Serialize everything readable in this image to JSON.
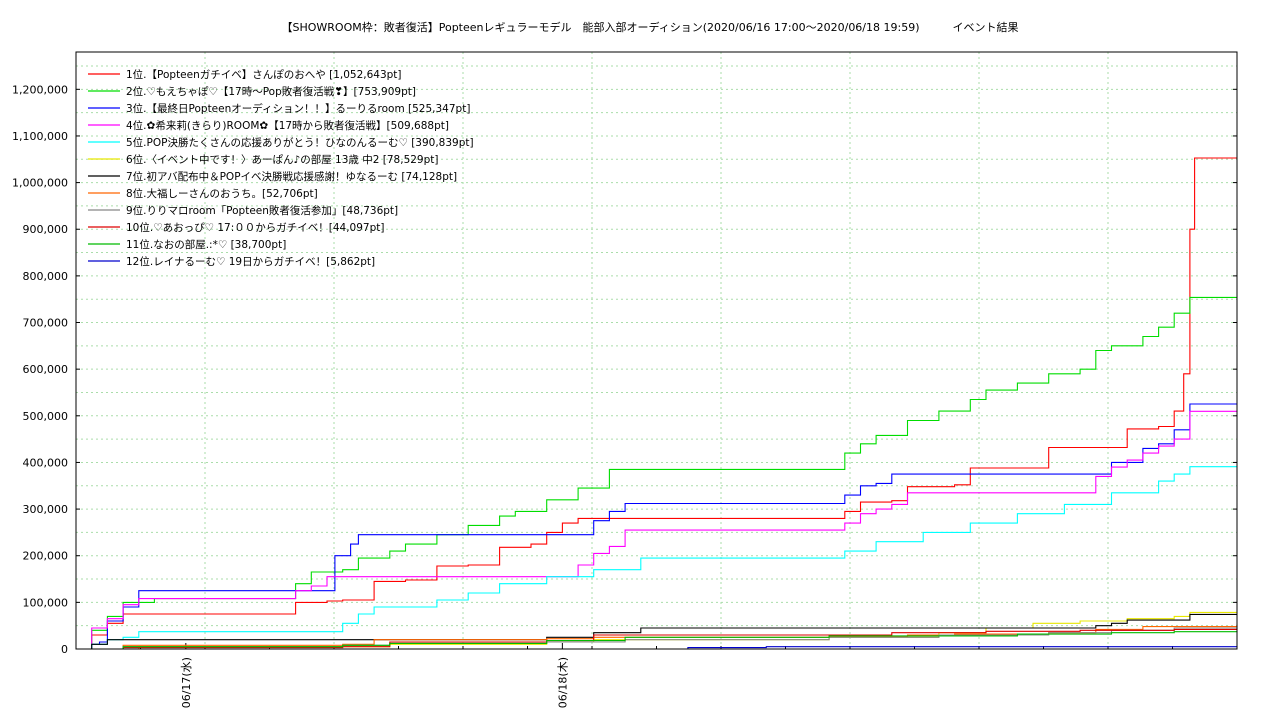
{
  "chart_data": {
    "type": "line",
    "title": "【SHOWROOM枠：敗者復活】Popteenレギュラーモデル　能部入部オーディション(2020/06/16 17:00～2020/06/18 19:59)　　　イベント結果",
    "xlabel": "",
    "ylabel": "",
    "xlim": [
      "2020-06-16 17:00",
      "2020-06-18 19:59"
    ],
    "ylim": [
      0,
      1280000
    ],
    "yticks": [
      "0",
      "100,000",
      "200,000",
      "300,000",
      "400,000",
      "500,000",
      "600,000",
      "700,000",
      "800,000",
      "900,000",
      "1,000,000",
      "1,100,000",
      "1,200,000"
    ],
    "xticks": [
      {
        "label": "06/17(水)",
        "t": 7
      },
      {
        "label": "06/18(木)",
        "t": 31
      }
    ],
    "grid": true,
    "legend_position": "top-left",
    "series": [
      {
        "name": "1位.【Popteenガチイベ】さんぽのおへや [1,052,643pt]",
        "color": "#ff0000",
        "points": [
          [
            0,
            0
          ],
          [
            1,
            30000
          ],
          [
            2,
            55000
          ],
          [
            3,
            75000
          ],
          [
            13,
            75000
          ],
          [
            14,
            100000
          ],
          [
            16,
            103000
          ],
          [
            17,
            105000
          ],
          [
            19,
            145000
          ],
          [
            21,
            148000
          ],
          [
            23,
            178000
          ],
          [
            25,
            180000
          ],
          [
            27,
            218000
          ],
          [
            29,
            225000
          ],
          [
            30,
            250000
          ],
          [
            31,
            270000
          ],
          [
            32,
            280000
          ],
          [
            48,
            280000
          ],
          [
            49,
            295000
          ],
          [
            50,
            315000
          ],
          [
            52,
            318000
          ],
          [
            53,
            348000
          ],
          [
            56,
            352000
          ],
          [
            57,
            388000
          ],
          [
            61,
            388000
          ],
          [
            62,
            432000
          ],
          [
            66,
            432000
          ],
          [
            67,
            472000
          ],
          [
            69,
            477000
          ],
          [
            70,
            510000
          ],
          [
            70.6,
            590000
          ],
          [
            71,
            900000
          ],
          [
            71.3,
            1052643
          ],
          [
            74,
            1052643
          ]
        ]
      },
      {
        "name": "2位.♡もえちゃぽ♡【17時〜Pop敗者復活戦❣】[753,909pt]",
        "color": "#00dd00",
        "points": [
          [
            0,
            0
          ],
          [
            1,
            40000
          ],
          [
            2,
            70000
          ],
          [
            3,
            100000
          ],
          [
            5,
            108000
          ],
          [
            13,
            108000
          ],
          [
            14,
            140000
          ],
          [
            15,
            165000
          ],
          [
            17,
            170000
          ],
          [
            18,
            195000
          ],
          [
            20,
            210000
          ],
          [
            21,
            225000
          ],
          [
            23,
            245000
          ],
          [
            25,
            265000
          ],
          [
            27,
            285000
          ],
          [
            28,
            295000
          ],
          [
            30,
            320000
          ],
          [
            32,
            345000
          ],
          [
            34,
            385000
          ],
          [
            48,
            385000
          ],
          [
            49,
            420000
          ],
          [
            50,
            440000
          ],
          [
            51,
            458000
          ],
          [
            53,
            490000
          ],
          [
            55,
            510000
          ],
          [
            57,
            535000
          ],
          [
            58,
            555000
          ],
          [
            60,
            570000
          ],
          [
            62,
            590000
          ],
          [
            64,
            600000
          ],
          [
            65,
            640000
          ],
          [
            66,
            650000
          ],
          [
            68,
            670000
          ],
          [
            69,
            690000
          ],
          [
            70,
            720000
          ],
          [
            71,
            753909
          ],
          [
            74,
            753909
          ]
        ]
      },
      {
        "name": "3位.【最終日Popteenオーディション！！】るーりるroom [525,347pt]",
        "color": "#0000ff",
        "points": [
          [
            0,
            0
          ],
          [
            1,
            10000
          ],
          [
            1.5,
            15000
          ],
          [
            2,
            60000
          ],
          [
            3,
            90000
          ],
          [
            4,
            125000
          ],
          [
            16,
            125000
          ],
          [
            16.5,
            200000
          ],
          [
            17.5,
            225000
          ],
          [
            18,
            245000
          ],
          [
            32,
            245000
          ],
          [
            33,
            275000
          ],
          [
            34,
            295000
          ],
          [
            35,
            312000
          ],
          [
            48,
            312000
          ],
          [
            49,
            330000
          ],
          [
            50,
            350000
          ],
          [
            51,
            355000
          ],
          [
            52,
            375000
          ],
          [
            65,
            375000
          ],
          [
            66,
            400000
          ],
          [
            68,
            430000
          ],
          [
            69,
            440000
          ],
          [
            70,
            470000
          ],
          [
            71,
            525347
          ],
          [
            74,
            525347
          ]
        ]
      },
      {
        "name": "4位.✿希来莉(きらり)ROOM✿【17時から敗者復活戦】[509,688pt]",
        "color": "#ff00ff",
        "points": [
          [
            0,
            0
          ],
          [
            1,
            45000
          ],
          [
            2,
            65000
          ],
          [
            3,
            95000
          ],
          [
            4,
            108000
          ],
          [
            13,
            108000
          ],
          [
            14,
            125000
          ],
          [
            15,
            135000
          ],
          [
            16,
            155000
          ],
          [
            31,
            155000
          ],
          [
            32,
            180000
          ],
          [
            33,
            205000
          ],
          [
            34,
            220000
          ],
          [
            35,
            255000
          ],
          [
            48,
            255000
          ],
          [
            49,
            270000
          ],
          [
            50,
            290000
          ],
          [
            51,
            300000
          ],
          [
            52,
            310000
          ],
          [
            53,
            335000
          ],
          [
            64,
            335000
          ],
          [
            65,
            370000
          ],
          [
            66,
            390000
          ],
          [
            67,
            405000
          ],
          [
            68,
            420000
          ],
          [
            69,
            435000
          ],
          [
            70,
            450000
          ],
          [
            71,
            509688
          ],
          [
            74,
            509688
          ]
        ]
      },
      {
        "name": "5位.POP決勝たくさんの応援ありがとう！ひなのんるーむ♡ [390,839pt]",
        "color": "#00ffff",
        "points": [
          [
            0,
            0
          ],
          [
            1,
            10000
          ],
          [
            2,
            20000
          ],
          [
            3,
            25000
          ],
          [
            4,
            37000
          ],
          [
            16,
            37000
          ],
          [
            17,
            55000
          ],
          [
            18,
            75000
          ],
          [
            19,
            90000
          ],
          [
            23,
            105000
          ],
          [
            25,
            120000
          ],
          [
            27,
            140000
          ],
          [
            30,
            155000
          ],
          [
            33,
            170000
          ],
          [
            36,
            195000
          ],
          [
            48,
            195000
          ],
          [
            49,
            210000
          ],
          [
            51,
            230000
          ],
          [
            54,
            250000
          ],
          [
            57,
            270000
          ],
          [
            60,
            290000
          ],
          [
            63,
            310000
          ],
          [
            66,
            335000
          ],
          [
            69,
            360000
          ],
          [
            70,
            375000
          ],
          [
            71,
            390839
          ],
          [
            74,
            390839
          ]
        ]
      },
      {
        "name": "6位.〈イベント中です！〉あーぱん♪の部屋 13歳 中2 [78,529pt]",
        "color": "#e8e800",
        "points": [
          [
            0,
            0
          ],
          [
            4,
            5000
          ],
          [
            16,
            5000
          ],
          [
            20,
            10000
          ],
          [
            30,
            15000
          ],
          [
            33,
            20000
          ],
          [
            48,
            25000
          ],
          [
            55,
            35000
          ],
          [
            58,
            45000
          ],
          [
            61,
            55000
          ],
          [
            64,
            60000
          ],
          [
            67,
            65000
          ],
          [
            70,
            70000
          ],
          [
            71,
            78529
          ],
          [
            74,
            78529
          ]
        ]
      },
      {
        "name": "7位.初アバ配布中＆POPイベ決勝戦応援感謝！ゆなるーむ [74,128pt]",
        "color": "#000000",
        "points": [
          [
            0,
            0
          ],
          [
            1,
            10000
          ],
          [
            2,
            20000
          ],
          [
            17,
            20000
          ],
          [
            30,
            25000
          ],
          [
            33,
            35000
          ],
          [
            36,
            45000
          ],
          [
            57,
            45000
          ],
          [
            63,
            45000
          ],
          [
            65,
            50000
          ],
          [
            66,
            55000
          ],
          [
            67,
            62000
          ],
          [
            70,
            62000
          ],
          [
            71,
            74128
          ],
          [
            74,
            74128
          ]
        ]
      },
      {
        "name": "8位.大福しーさんのおうち。[52,706pt]",
        "color": "#ff6600",
        "points": [
          [
            0,
            0
          ],
          [
            3,
            8000
          ],
          [
            17,
            10000
          ],
          [
            19,
            20000
          ],
          [
            30,
            22000
          ],
          [
            33,
            25000
          ],
          [
            48,
            27000
          ],
          [
            53,
            30000
          ],
          [
            56,
            32000
          ],
          [
            62,
            35000
          ],
          [
            65,
            42000
          ],
          [
            68,
            48000
          ],
          [
            74,
            52706
          ]
        ]
      },
      {
        "name": "9位.りりマロroom「Popteen敗者復活参加」[48,736pt]",
        "color": "#888888",
        "points": [
          [
            0,
            0
          ],
          [
            3,
            5000
          ],
          [
            17,
            8000
          ],
          [
            20,
            12000
          ],
          [
            30,
            15000
          ],
          [
            35,
            20000
          ],
          [
            48,
            25000
          ],
          [
            55,
            30000
          ],
          [
            62,
            35000
          ],
          [
            66,
            40000
          ],
          [
            70,
            45000
          ],
          [
            74,
            48736
          ]
        ]
      },
      {
        "name": "10位.♡あおっぴ♡ 17:００からガチイベ！[44,097pt]",
        "color": "#dd0000",
        "points": [
          [
            0,
            0
          ],
          [
            3,
            3000
          ],
          [
            17,
            5000
          ],
          [
            20,
            15000
          ],
          [
            30,
            18000
          ],
          [
            33,
            30000
          ],
          [
            48,
            30000
          ],
          [
            52,
            35000
          ],
          [
            58,
            38000
          ],
          [
            64,
            40000
          ],
          [
            70,
            42000
          ],
          [
            74,
            44097
          ]
        ]
      },
      {
        "name": "11位.なおの部屋.:*♡ [38,700pt]",
        "color": "#00bb00",
        "points": [
          [
            0,
            0
          ],
          [
            3,
            5000
          ],
          [
            17,
            8000
          ],
          [
            20,
            12000
          ],
          [
            30,
            18000
          ],
          [
            35,
            25000
          ],
          [
            48,
            28000
          ],
          [
            60,
            32000
          ],
          [
            66,
            35000
          ],
          [
            70,
            37000
          ],
          [
            74,
            38700
          ]
        ]
      },
      {
        "name": "12位.レイナるーむ♡ 19日からガチイベ！[5,862pt]",
        "color": "#0000cc",
        "points": [
          [
            0,
            0
          ],
          [
            38,
            0
          ],
          [
            39,
            3000
          ],
          [
            44,
            5000
          ],
          [
            74,
            5862
          ]
        ]
      }
    ]
  }
}
